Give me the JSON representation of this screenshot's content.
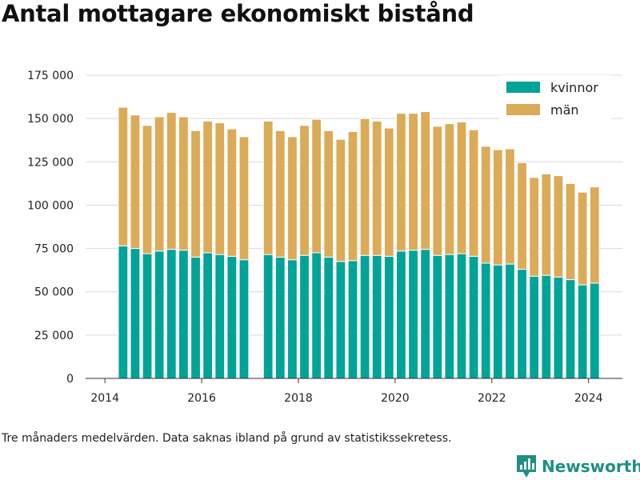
{
  "title": "Antal mottagare ekonomiskt bistånd",
  "footnote": "Tre månaders medelvärden. Data saknas ibland på grund av statistikssekretess.",
  "brand": {
    "name": "Newsworthy",
    "icon": "bar-chart-logo-icon",
    "color": "#1f8f83"
  },
  "chart_data": {
    "type": "bar",
    "stacked": true,
    "xlim": [
      2013.6,
      2024.7
    ],
    "ylim": [
      0,
      175000
    ],
    "yticks": [
      0,
      25000,
      50000,
      75000,
      100000,
      125000,
      150000,
      175000
    ],
    "ytick_labels": [
      "0",
      "25 000",
      "50 000",
      "75 000",
      "100 000",
      "125 000",
      "150 000",
      "175 000"
    ],
    "xticks": [
      2014,
      2016,
      2018,
      2020,
      2022,
      2024
    ],
    "xtick_labels": [
      "2014",
      "2016",
      "2018",
      "2020",
      "2022",
      "2024"
    ],
    "grid": true,
    "legend": "top-right",
    "x": [
      2014.375,
      2014.625,
      2014.875,
      2015.125,
      2015.375,
      2015.625,
      2015.875,
      2016.125,
      2016.375,
      2016.625,
      2016.875,
      2017.375,
      2017.625,
      2017.875,
      2018.125,
      2018.375,
      2018.625,
      2018.875,
      2019.125,
      2019.375,
      2019.625,
      2019.875,
      2020.125,
      2020.375,
      2020.625,
      2020.875,
      2021.125,
      2021.375,
      2021.625,
      2021.875,
      2022.125,
      2022.375,
      2022.625,
      2022.875,
      2023.125,
      2023.375,
      2023.625,
      2023.875,
      2024.125
    ],
    "series": [
      {
        "name": "kvinnor",
        "color": "#00a398",
        "values": [
          76500,
          75000,
          72000,
          73500,
          74500,
          74000,
          70000,
          72500,
          71500,
          70500,
          68500,
          71500,
          70000,
          68500,
          71000,
          72500,
          70000,
          67500,
          68000,
          71000,
          71000,
          70500,
          73500,
          74000,
          74500,
          71000,
          71500,
          72000,
          70500,
          66500,
          65500,
          66000,
          63000,
          59000,
          59500,
          58500,
          57000,
          54000,
          55000
        ]
      },
      {
        "name": "män",
        "color": "#dbab58",
        "values": [
          80000,
          77000,
          74000,
          77500,
          79000,
          77000,
          73000,
          76000,
          76000,
          73500,
          71000,
          77000,
          73000,
          71000,
          75000,
          77000,
          73000,
          70500,
          74500,
          79000,
          77500,
          74000,
          79500,
          79000,
          79500,
          74500,
          75500,
          76000,
          73000,
          67500,
          66500,
          66500,
          61500,
          57000,
          58500,
          58500,
          55500,
          53500,
          55500
        ]
      }
    ]
  }
}
